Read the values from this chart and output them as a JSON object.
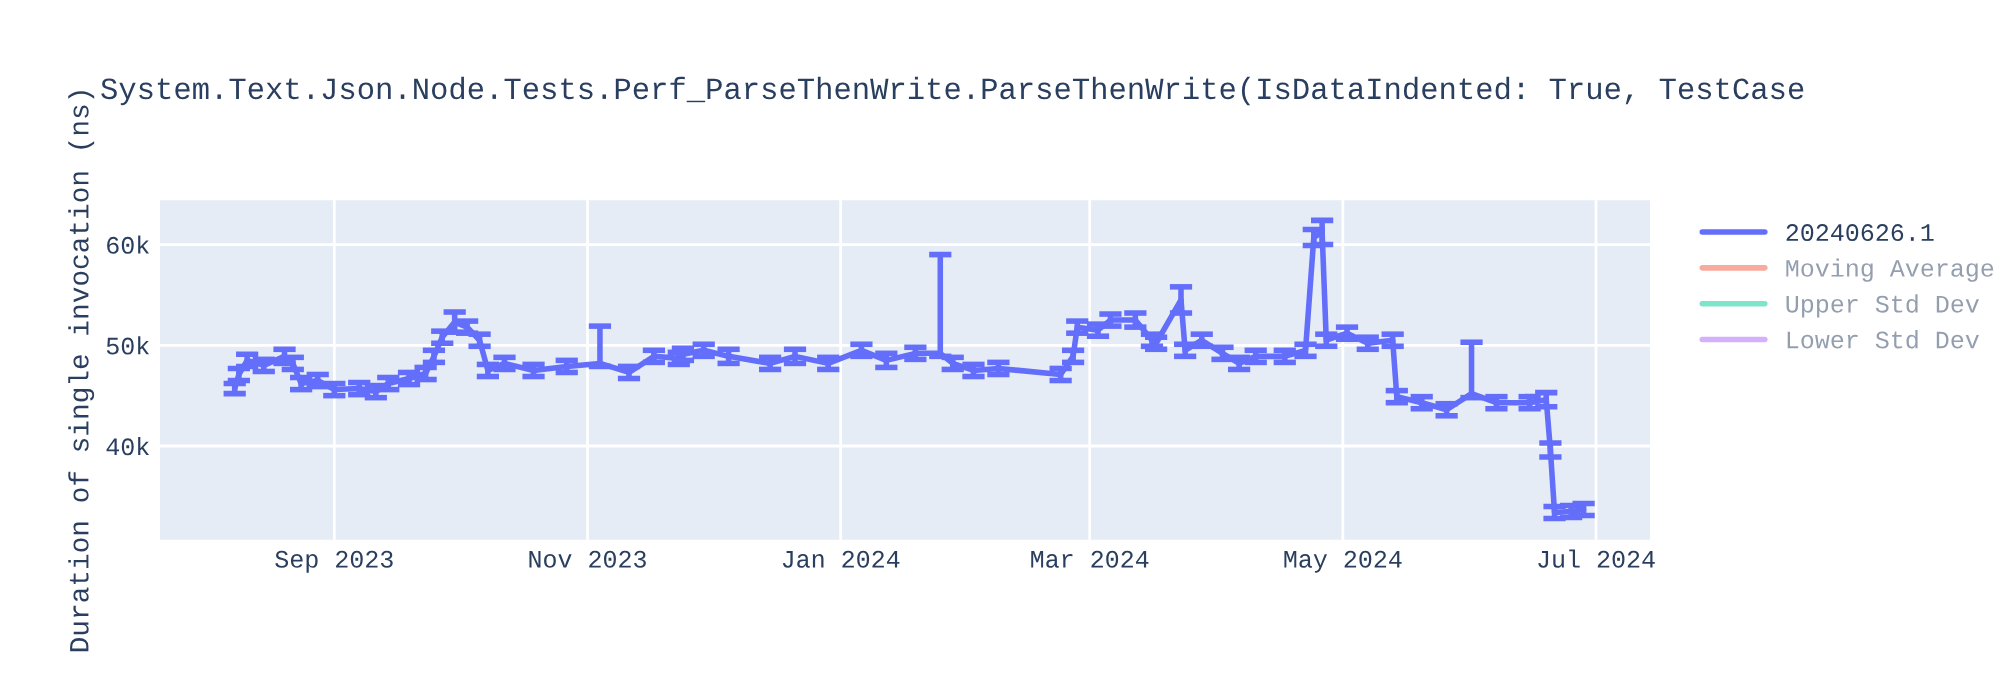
{
  "chart_data": {
    "type": "line",
    "title": "System.Text.Json.Node.Tests.Perf_ParseThenWrite.ParseThenWrite(IsDataIndented: True, TestCase",
    "ylabel": "Duration of single invocation (ns)",
    "x": [
      "2023-08-08",
      "2023-08-09",
      "2023-08-11",
      "2023-08-15",
      "2023-08-20",
      "2023-08-22",
      "2023-08-24",
      "2023-08-28",
      "2023-09-01",
      "2023-09-07",
      "2023-09-11",
      "2023-09-14",
      "2023-09-19",
      "2023-09-23",
      "2023-09-25",
      "2023-09-27",
      "2023-09-30",
      "2023-10-03",
      "2023-10-06",
      "2023-10-08",
      "2023-10-12",
      "2023-10-19",
      "2023-10-27",
      "2023-11-04",
      "2023-11-11",
      "2023-11-17",
      "2023-11-23",
      "2023-11-24",
      "2023-11-29",
      "2023-12-05",
      "2023-12-15",
      "2023-12-21",
      "2023-12-29",
      "2024-01-06",
      "2024-01-12",
      "2024-01-19",
      "2024-01-25",
      "2024-01-28",
      "2024-02-02",
      "2024-02-08",
      "2024-02-23",
      "2024-02-26",
      "2024-02-27",
      "2024-03-03",
      "2024-03-06",
      "2024-03-12",
      "2024-03-16",
      "2024-03-17",
      "2024-03-23",
      "2024-03-24",
      "2024-03-28",
      "2024-04-02",
      "2024-04-06",
      "2024-04-10",
      "2024-04-17",
      "2024-04-22",
      "2024-04-24",
      "2024-04-26",
      "2024-04-27",
      "2024-05-02",
      "2024-05-07",
      "2024-05-13",
      "2024-05-14",
      "2024-05-20",
      "2024-05-26",
      "2024-06-01",
      "2024-06-07",
      "2024-06-15",
      "2024-06-19",
      "2024-06-20",
      "2024-06-21",
      "2024-06-25",
      "2024-06-28"
    ],
    "series": [
      {
        "name": "20240626.1",
        "color": "#636efa",
        "values": [
          45700,
          47100,
          48500,
          48000,
          48900,
          48200,
          46200,
          46500,
          45600,
          45700,
          45400,
          46200,
          46700,
          47200,
          48900,
          50800,
          52300,
          51800,
          50500,
          47500,
          48200,
          47500,
          47900,
          48200,
          47300,
          48900,
          48700,
          49100,
          49500,
          48900,
          48200,
          48900,
          48200,
          49500,
          48500,
          49200,
          49200,
          48200,
          47500,
          47700,
          47100,
          48900,
          51800,
          51500,
          52500,
          52500,
          50500,
          50200,
          54500,
          49500,
          50500,
          49200,
          48200,
          48900,
          48900,
          49500,
          60700,
          61200,
          50500,
          51200,
          50200,
          50500,
          44900,
          44300,
          43600,
          45200,
          44300,
          44300,
          44600,
          39600,
          33400,
          33500,
          33700
        ],
        "errors": [
          500,
          600,
          600,
          600,
          700,
          600,
          600,
          600,
          600,
          600,
          600,
          600,
          600,
          600,
          600,
          600,
          1000,
          600,
          600,
          600,
          600,
          600,
          600,
          [
            47900,
            51900
          ],
          600,
          600,
          600,
          600,
          600,
          700,
          600,
          700,
          600,
          600,
          700,
          600,
          [
            48900,
            59000
          ],
          600,
          600,
          600,
          600,
          600,
          600,
          600,
          600,
          700,
          600,
          600,
          1300,
          600,
          600,
          600,
          600,
          600,
          600,
          600,
          800,
          1200,
          600,
          600,
          600,
          600,
          600,
          600,
          600,
          [
            44800,
            50300
          ],
          600,
          600,
          700,
          700,
          600,
          600,
          600
        ]
      },
      {
        "name": "Moving Average",
        "color": "#ef553b",
        "values": [
          null,
          null,
          null,
          null,
          null,
          null,
          null,
          null,
          null,
          null,
          null,
          null,
          null,
          null,
          null,
          null,
          null,
          null,
          null,
          null,
          null,
          null,
          null,
          null,
          null,
          null,
          null,
          null,
          null,
          null,
          null,
          null,
          null,
          null,
          null,
          null,
          null,
          null,
          null,
          null,
          null,
          null,
          null,
          null,
          null,
          null,
          null,
          null,
          null,
          null,
          null,
          null,
          null,
          null,
          null,
          null,
          null,
          null,
          null,
          null,
          null,
          null,
          null,
          null,
          null,
          null,
          null,
          null,
          null,
          null,
          null,
          null,
          null
        ]
      },
      {
        "name": "Upper Std Dev",
        "color": "#00cc96",
        "values": [
          null,
          null,
          null,
          null,
          null,
          null,
          null,
          null,
          null,
          null,
          null,
          null,
          null,
          null,
          null,
          null,
          null,
          null,
          null,
          null,
          null,
          null,
          null,
          null,
          null,
          null,
          null,
          null,
          null,
          null,
          null,
          null,
          null,
          null,
          null,
          null,
          null,
          null,
          null,
          null,
          null,
          null,
          null,
          null,
          null,
          null,
          null,
          null,
          null,
          null,
          null,
          null,
          null,
          null,
          null,
          null,
          null,
          null,
          null,
          null,
          null,
          null,
          null,
          null,
          null,
          null,
          null,
          null,
          null,
          null,
          null,
          null,
          null
        ]
      },
      {
        "name": "Lower Std Dev",
        "color": "#ab63fa",
        "values": [
          null,
          null,
          null,
          null,
          null,
          null,
          null,
          null,
          null,
          null,
          null,
          null,
          null,
          null,
          null,
          null,
          null,
          null,
          null,
          null,
          null,
          null,
          null,
          null,
          null,
          null,
          null,
          null,
          null,
          null,
          null,
          null,
          null,
          null,
          null,
          null,
          null,
          null,
          null,
          null,
          null,
          null,
          null,
          null,
          null,
          null,
          null,
          null,
          null,
          null,
          null,
          null,
          null,
          null,
          null,
          null,
          null,
          null,
          null,
          null,
          null,
          null,
          null,
          null,
          null,
          null,
          null,
          null,
          null,
          null,
          null,
          null,
          null
        ]
      }
    ],
    "xlim": [
      "2023-07-21",
      "2024-07-14"
    ],
    "xticks": [
      {
        "value": "2023-09-01",
        "label": "Sep 2023"
      },
      {
        "value": "2023-11-01",
        "label": "Nov 2023"
      },
      {
        "value": "2024-01-01",
        "label": "Jan 2024"
      },
      {
        "value": "2024-03-01",
        "label": "Mar 2024"
      },
      {
        "value": "2024-05-01",
        "label": "May 2024"
      },
      {
        "value": "2024-07-01",
        "label": "Jul 2024"
      }
    ],
    "ylim": [
      30700,
      64400
    ],
    "yticks": [
      {
        "value": 40000,
        "label": "40k"
      },
      {
        "value": 50000,
        "label": "50k"
      },
      {
        "value": 60000,
        "label": "60k"
      }
    ],
    "grid": true,
    "legend": "right",
    "marker": "none",
    "line_style": "solid"
  }
}
